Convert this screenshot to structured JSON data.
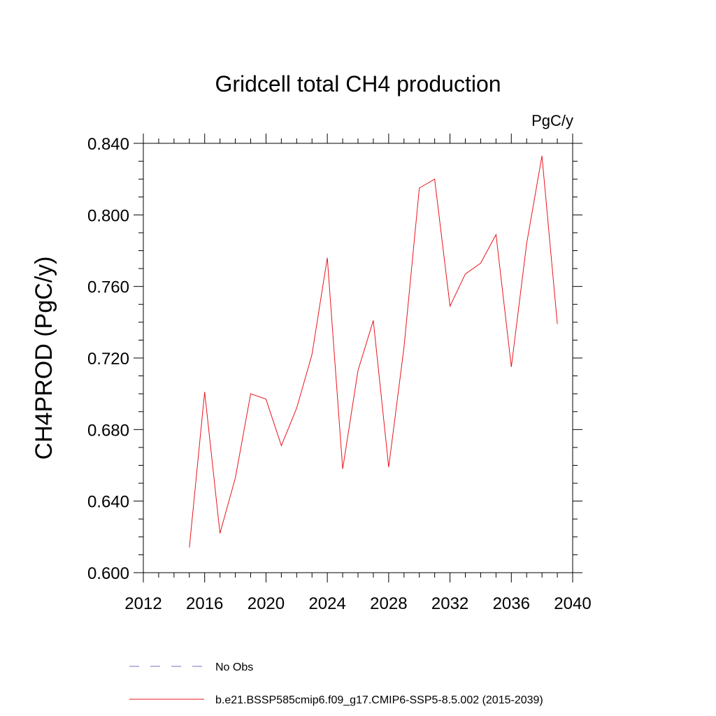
{
  "chart_data": {
    "type": "line",
    "title": "Gridcell total CH4 production",
    "units_label": "PgC/y",
    "ylabel": "CH4PROD  (PgC/y)",
    "xlabel": "",
    "xlim": [
      2012,
      2040
    ],
    "ylim": [
      0.6,
      0.84
    ],
    "x_ticks": [
      2012,
      2016,
      2020,
      2024,
      2028,
      2032,
      2036,
      2040
    ],
    "y_ticks": [
      0.6,
      0.64,
      0.68,
      0.72,
      0.76,
      0.8,
      0.84
    ],
    "y_tick_labels": [
      "0.600",
      "0.640",
      "0.680",
      "0.720",
      "0.760",
      "0.800",
      "0.840"
    ],
    "grid": false,
    "legend_placement": "bottom",
    "series": [
      {
        "name": "b.e21.BSSP585cmip6.f09_g17.CMIP6-SSP5-8.5.002 (2015-2039)",
        "color": "#e8141c",
        "style": "solid",
        "x": [
          2015,
          2016,
          2017,
          2018,
          2019,
          2020,
          2021,
          2022,
          2023,
          2024,
          2025,
          2026,
          2027,
          2028,
          2029,
          2030,
          2031,
          2032,
          2033,
          2034,
          2035,
          2036,
          2037,
          2038,
          2039
        ],
        "y": [
          0.614,
          0.701,
          0.622,
          0.653,
          0.7,
          0.697,
          0.671,
          0.692,
          0.722,
          0.776,
          0.658,
          0.713,
          0.741,
          0.659,
          0.726,
          0.815,
          0.82,
          0.749,
          0.767,
          0.773,
          0.789,
          0.715,
          0.784,
          0.833,
          0.739
        ]
      }
    ],
    "legend": [
      {
        "label": "No Obs",
        "color": "#7b6fc0",
        "style": "dashed"
      },
      {
        "label": "b.e21.BSSP585cmip6.f09_g17.CMIP6-SSP5-8.5.002 (2015-2039)",
        "color": "#e8141c",
        "style": "solid"
      }
    ]
  }
}
